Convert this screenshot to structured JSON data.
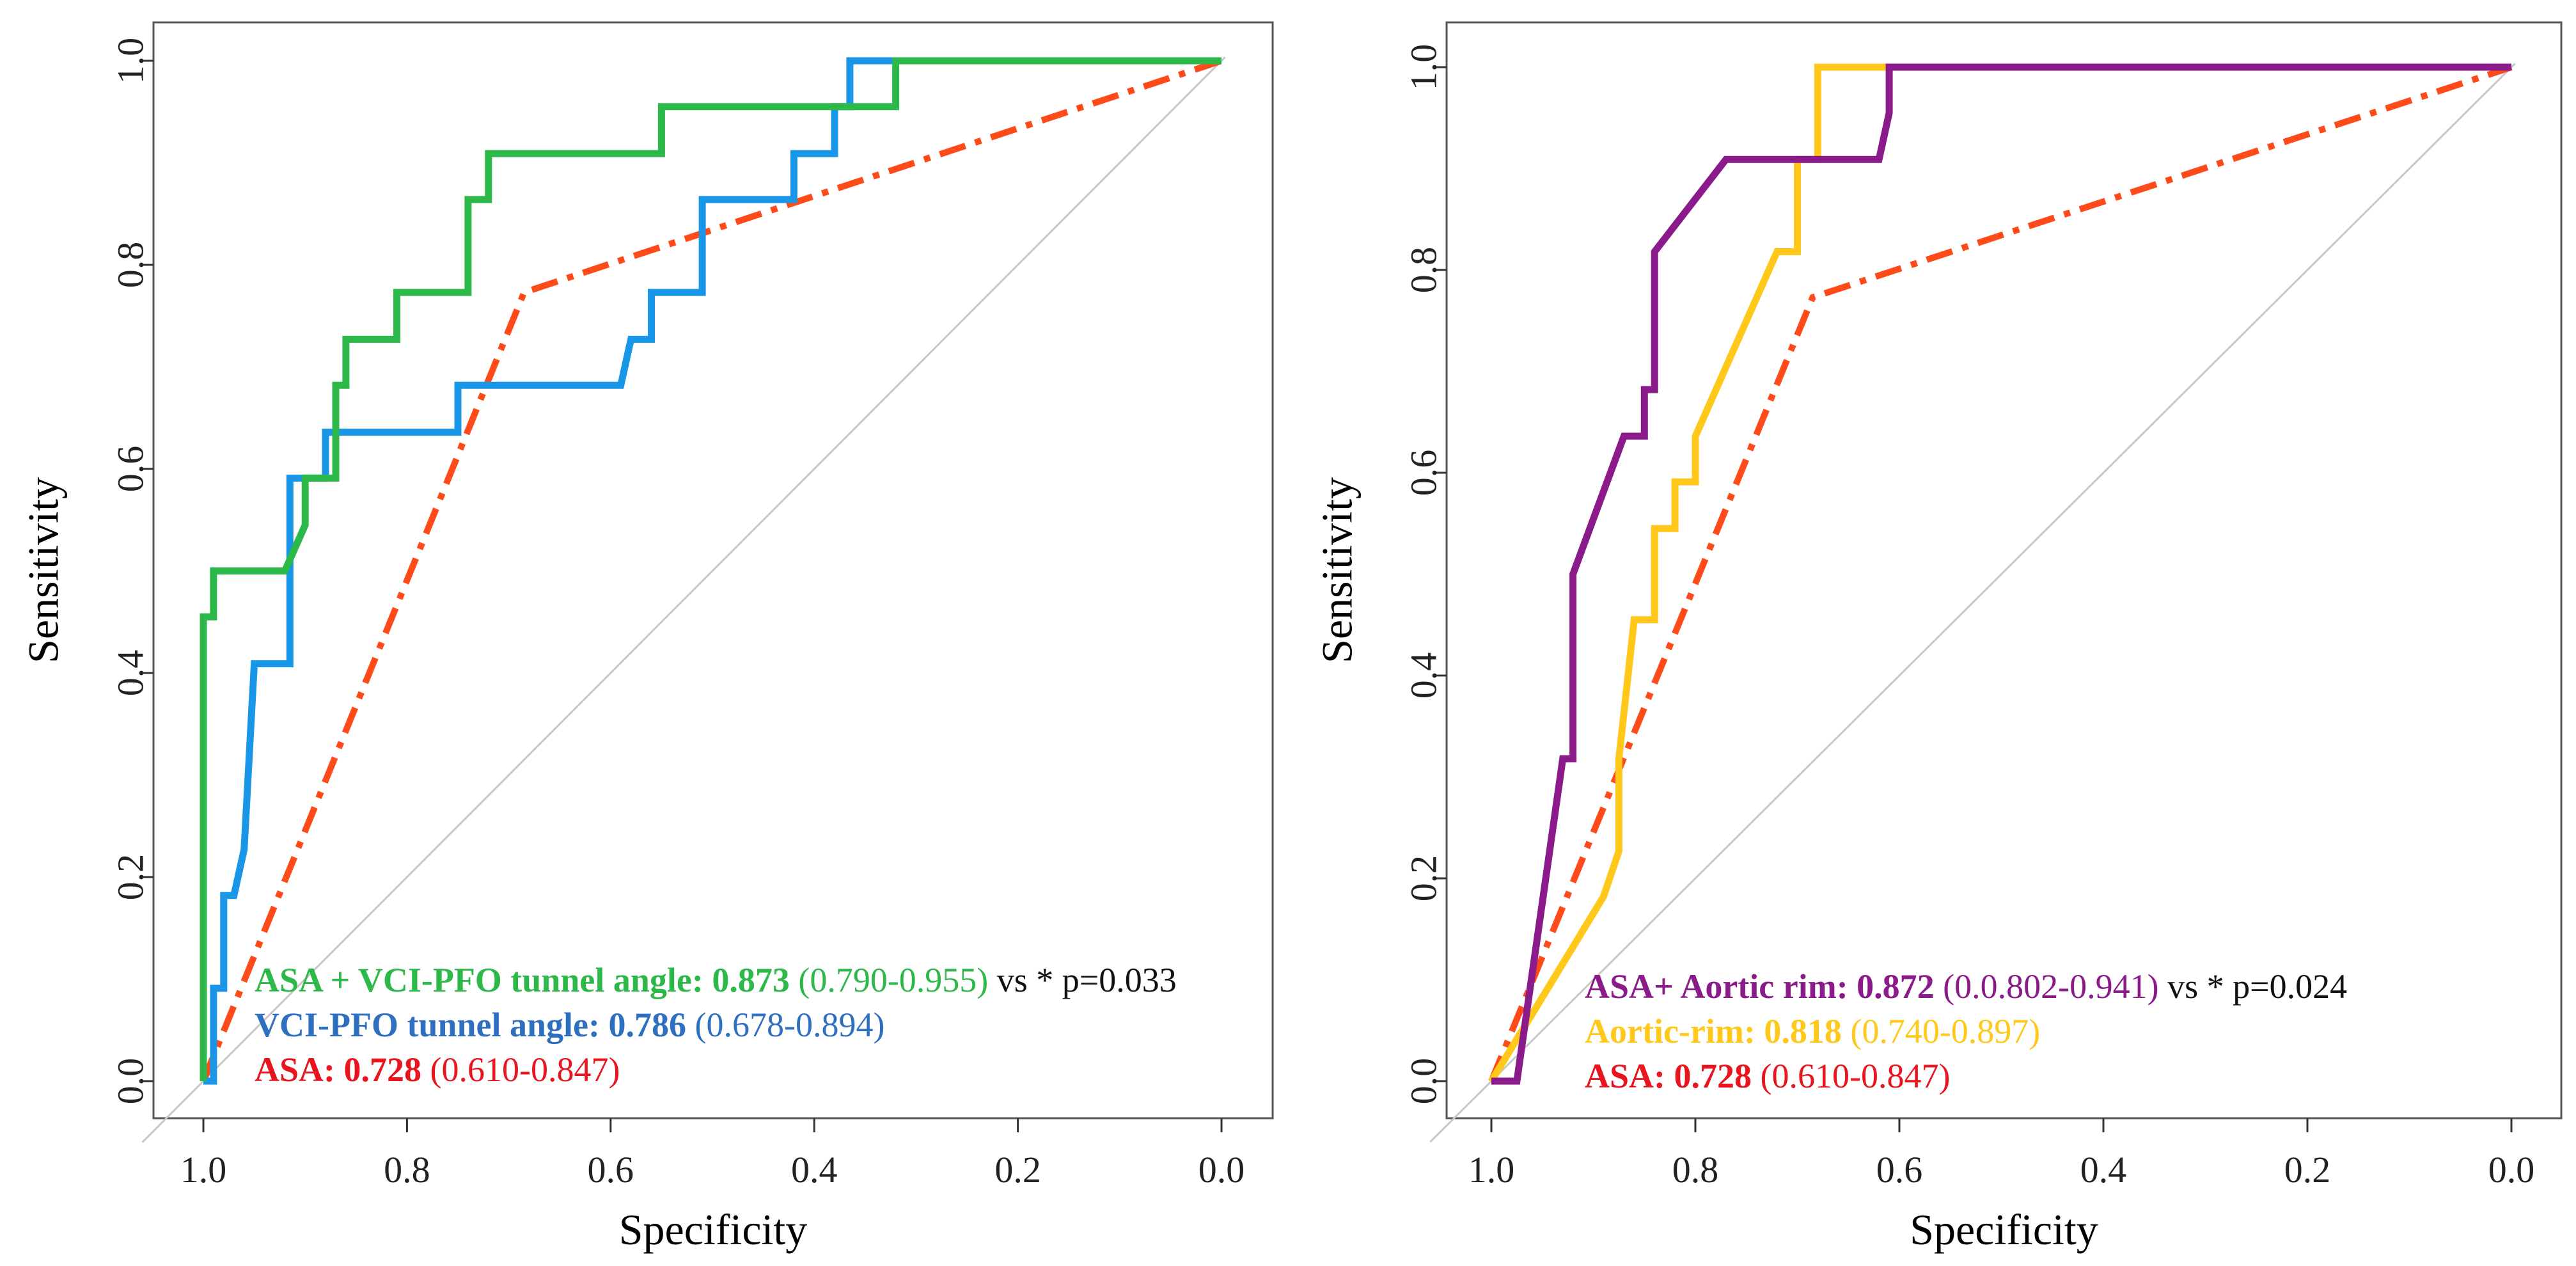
{
  "colors": {
    "green": "#2db84a",
    "blue": "#1a96e8",
    "red": "#ff4a1a",
    "purple": "#8b1a8a",
    "gold": "#ffc81a",
    "diag": "#c8c8c8",
    "legend_blue_text": "#2f6fc0",
    "legend_red_text": "#e8141e"
  },
  "chart_data": [
    {
      "type": "line",
      "panel": "left",
      "xlabel": "Specificity",
      "ylabel": "Sensitivity",
      "xlim": [
        1.0,
        0.0
      ],
      "ylim": [
        0.0,
        1.0
      ],
      "x_reversed": true,
      "xticks": [
        "1.0",
        "0.8",
        "0.6",
        "0.4",
        "0.2",
        "0.0"
      ],
      "yticks": [
        "0.0",
        "0.2",
        "0.4",
        "0.6",
        "0.8",
        "1.0"
      ],
      "series": [
        {
          "name": "ASA",
          "color_key": "red",
          "dash": true,
          "x": [
            1.0,
            0.685,
            0.0
          ],
          "y": [
            0.0,
            0.773,
            1.0
          ]
        },
        {
          "name": "VCI-PFO tunnel angle",
          "color_key": "blue",
          "x": [
            1.0,
            0.99,
            0.99,
            0.98,
            0.98,
            0.97,
            0.96,
            0.96,
            0.95,
            0.95,
            0.915,
            0.915,
            0.88,
            0.88,
            0.75,
            0.75,
            0.59,
            0.58,
            0.56,
            0.56,
            0.51,
            0.51,
            0.42,
            0.42,
            0.38,
            0.38,
            0.365,
            0.365,
            0.32,
            0.32,
            0.0
          ],
          "y": [
            0.0,
            0.0,
            0.091,
            0.091,
            0.182,
            0.182,
            0.227,
            0.227,
            0.409,
            0.409,
            0.409,
            0.591,
            0.591,
            0.636,
            0.636,
            0.682,
            0.682,
            0.727,
            0.727,
            0.773,
            0.773,
            0.864,
            0.864,
            0.909,
            0.909,
            0.955,
            0.955,
            1.0,
            1.0,
            1.0,
            1.0
          ]
        },
        {
          "name": "ASA + VCI-PFO tunnel angle",
          "color_key": "green",
          "x": [
            1.0,
            1.0,
            0.99,
            0.99,
            0.92,
            0.9,
            0.9,
            0.87,
            0.87,
            0.86,
            0.86,
            0.81,
            0.81,
            0.74,
            0.74,
            0.72,
            0.72,
            0.55,
            0.55,
            0.32,
            0.32,
            0.0
          ],
          "y": [
            0.0,
            0.455,
            0.455,
            0.5,
            0.5,
            0.545,
            0.591,
            0.591,
            0.682,
            0.682,
            0.727,
            0.727,
            0.773,
            0.773,
            0.864,
            0.864,
            0.909,
            0.909,
            0.955,
            0.955,
            1.0,
            1.0
          ]
        }
      ],
      "legend": [
        {
          "name": "ASA + VCI-PFO tunnel angle: ",
          "auc": "0.873",
          "ci": " (0.790-0.955)",
          "extra": " vs * p=0.033",
          "color_key": "green"
        },
        {
          "name": "VCI-PFO tunnel angle: ",
          "auc": "0.786",
          "ci": " (0.678-0.894)",
          "extra": "",
          "color_key": "legend_blue_text"
        },
        {
          "name": "ASA: ",
          "auc": "0.728",
          "ci": " (0.610-0.847)",
          "extra": "",
          "color_key": "legend_red_text"
        }
      ]
    },
    {
      "type": "line",
      "panel": "right",
      "xlabel": "Specificity",
      "ylabel": "Sensitivity",
      "xlim": [
        1.0,
        0.0
      ],
      "ylim": [
        0.0,
        1.0
      ],
      "x_reversed": true,
      "xticks": [
        "1.0",
        "0.8",
        "0.6",
        "0.4",
        "0.2",
        "0.0"
      ],
      "yticks": [
        "0.0",
        "0.2",
        "0.4",
        "0.6",
        "0.8",
        "1.0"
      ],
      "series": [
        {
          "name": "ASA",
          "color_key": "red",
          "dash": true,
          "x": [
            1.0,
            0.685,
            0.0
          ],
          "y": [
            0.0,
            0.773,
            1.0
          ]
        },
        {
          "name": "Aortic-rim",
          "color_key": "gold",
          "x": [
            1.0,
            0.89,
            0.875,
            0.875,
            0.86,
            0.84,
            0.84,
            0.82,
            0.82,
            0.8,
            0.8,
            0.72,
            0.7,
            0.7,
            0.68,
            0.68,
            0.62,
            0.0
          ],
          "y": [
            0.0,
            0.182,
            0.227,
            0.318,
            0.455,
            0.455,
            0.545,
            0.545,
            0.591,
            0.591,
            0.636,
            0.818,
            0.818,
            0.909,
            0.909,
            1.0,
            1.0,
            1.0
          ]
        },
        {
          "name": "ASA+ Aortic rim",
          "color_key": "purple",
          "x": [
            1.0,
            0.975,
            0.93,
            0.92,
            0.92,
            0.87,
            0.85,
            0.85,
            0.84,
            0.84,
            0.77,
            0.62,
            0.61,
            0.61,
            0.0
          ],
          "y": [
            0.0,
            0.0,
            0.318,
            0.318,
            0.5,
            0.636,
            0.636,
            0.682,
            0.682,
            0.818,
            0.909,
            0.909,
            0.955,
            1.0,
            1.0
          ]
        }
      ],
      "legend": [
        {
          "name": "ASA+ Aortic rim: ",
          "auc": "0.872",
          "ci": " (0.0.802-0.941)",
          "extra": " vs * p=0.024",
          "color_key": "purple"
        },
        {
          "name": "Aortic-rim: ",
          "auc": "0.818",
          "ci": " (0.740-0.897)",
          "extra": "",
          "color_key": "gold"
        },
        {
          "name": "ASA: ",
          "auc": "0.728",
          "ci": " (0.610-0.847)",
          "extra": "",
          "color_key": "legend_red_text"
        }
      ]
    }
  ]
}
